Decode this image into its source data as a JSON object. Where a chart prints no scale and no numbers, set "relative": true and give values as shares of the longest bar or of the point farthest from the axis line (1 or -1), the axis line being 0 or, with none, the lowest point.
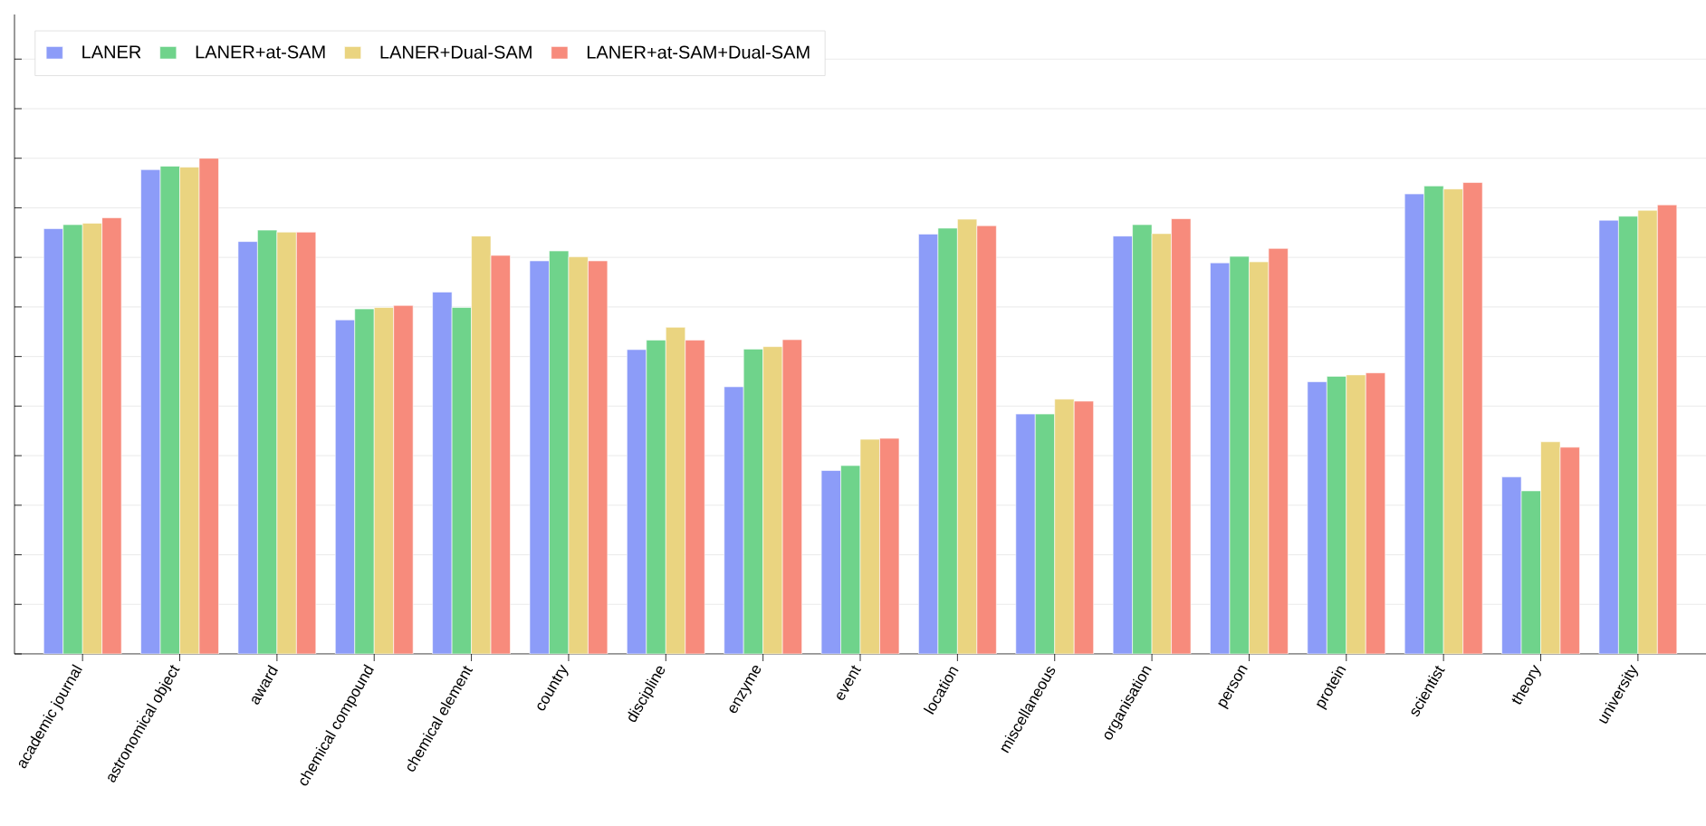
{
  "chart_data": {
    "type": "bar",
    "relative": true,
    "grid": "y",
    "legend": "top left",
    "categories": [
      "academic journal",
      "astronomical object",
      "award",
      "chemical compound",
      "chemical element",
      "country",
      "discipline",
      "enzyme",
      "event",
      "location",
      "miscellaneous",
      "organisation",
      "person",
      "protein",
      "scientist",
      "theory",
      "university"
    ],
    "series": [
      {
        "name": "LANER",
        "color": "#8c9cf8",
        "values": [
          0.858,
          0.977,
          0.832,
          0.674,
          0.73,
          0.793,
          0.614,
          0.539,
          0.37,
          0.847,
          0.484,
          0.843,
          0.789,
          0.549,
          0.928,
          0.357,
          0.875
        ]
      },
      {
        "name": "LANER+at-SAM",
        "color": "#6fd38b",
        "values": [
          0.866,
          0.984,
          0.855,
          0.696,
          0.699,
          0.813,
          0.633,
          0.615,
          0.38,
          0.859,
          0.484,
          0.866,
          0.802,
          0.56,
          0.944,
          0.329,
          0.883
        ]
      },
      {
        "name": "LANER+Dual-SAM",
        "color": "#ead480",
        "values": [
          0.869,
          0.982,
          0.851,
          0.699,
          0.843,
          0.801,
          0.659,
          0.62,
          0.433,
          0.877,
          0.514,
          0.848,
          0.791,
          0.563,
          0.938,
          0.428,
          0.895
        ]
      },
      {
        "name": "LANER+at-SAM+Dual-SAM",
        "color": "#f78b7c",
        "values": [
          0.88,
          1,
          0.851,
          0.703,
          0.804,
          0.793,
          0.633,
          0.634,
          0.435,
          0.864,
          0.51,
          0.878,
          0.818,
          0.567,
          0.951,
          0.417,
          0.906
        ]
      }
    ]
  }
}
